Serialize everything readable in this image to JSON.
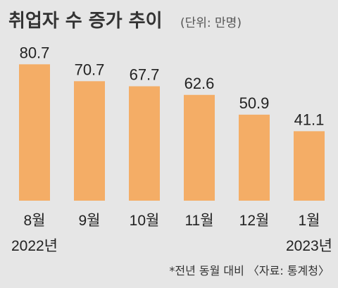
{
  "title": "취업자 수 증가 추이",
  "unit": "(단위: 만명)",
  "footnote": "*전년 동월 대비 〈자료: 통계청〉",
  "colors": {
    "bar": "#f4ad66",
    "background": "#e6e6e6"
  },
  "chart_data": {
    "type": "bar",
    "categories": [
      "8월",
      "9월",
      "10월",
      "11월",
      "12월",
      "1월"
    ],
    "year_labels": [
      "2022년",
      "",
      "",
      "",
      "",
      "2023년"
    ],
    "values": [
      80.7,
      70.7,
      67.7,
      62.6,
      50.9,
      41.1
    ],
    "value_labels": [
      "80.7",
      "70.7",
      "67.7",
      "62.6",
      "50.9",
      "41.1"
    ],
    "ylim": [
      0,
      90
    ],
    "grid": false,
    "legend": "none"
  }
}
